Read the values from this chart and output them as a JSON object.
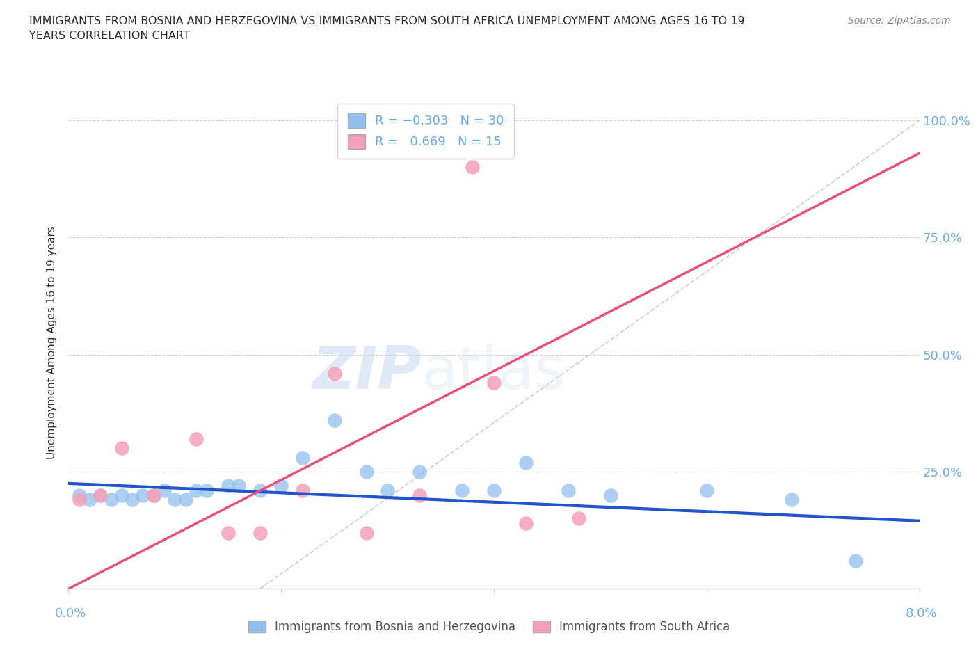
{
  "title": "IMMIGRANTS FROM BOSNIA AND HERZEGOVINA VS IMMIGRANTS FROM SOUTH AFRICA UNEMPLOYMENT AMONG AGES 16 TO 19\nYEARS CORRELATION CHART",
  "source": "Source: ZipAtlas.com",
  "ylabel": "Unemployment Among Ages 16 to 19 years",
  "xlim": [
    0.0,
    0.08
  ],
  "ylim": [
    0.0,
    1.05
  ],
  "bosnia_R": -0.303,
  "bosnia_N": 30,
  "sa_R": 0.669,
  "sa_N": 15,
  "bosnia_color": "#92C0EE",
  "sa_color": "#F4A0B8",
  "bosnia_line_color": "#2255CC",
  "sa_line_color": "#E8507A",
  "ref_line_color": "#c8c8c8",
  "tick_color": "#6aaae0",
  "legend_bosnia_label": "Immigrants from Bosnia and Herzegovina",
  "legend_sa_label": "Immigrants from South Africa",
  "bosnia_x": [
    0.001,
    0.002,
    0.003,
    0.004,
    0.005,
    0.006,
    0.007,
    0.008,
    0.009,
    0.01,
    0.011,
    0.012,
    0.013,
    0.015,
    0.016,
    0.018,
    0.02,
    0.022,
    0.025,
    0.028,
    0.03,
    0.033,
    0.037,
    0.04,
    0.043,
    0.047,
    0.051,
    0.06,
    0.068,
    0.074
  ],
  "bosnia_y": [
    0.2,
    0.19,
    0.2,
    0.19,
    0.2,
    0.19,
    0.2,
    0.2,
    0.21,
    0.19,
    0.19,
    0.21,
    0.21,
    0.22,
    0.22,
    0.21,
    0.22,
    0.28,
    0.36,
    0.25,
    0.21,
    0.25,
    0.21,
    0.21,
    0.27,
    0.21,
    0.2,
    0.21,
    0.19,
    0.06
  ],
  "sa_x": [
    0.001,
    0.003,
    0.005,
    0.008,
    0.012,
    0.015,
    0.018,
    0.022,
    0.025,
    0.028,
    0.033,
    0.038,
    0.04,
    0.043,
    0.048
  ],
  "sa_y": [
    0.19,
    0.2,
    0.3,
    0.2,
    0.32,
    0.12,
    0.12,
    0.21,
    0.46,
    0.12,
    0.2,
    0.9,
    0.44,
    0.14,
    0.15
  ],
  "bosnia_line_x": [
    0.0,
    0.08
  ],
  "bosnia_line_y": [
    0.225,
    0.145
  ],
  "sa_line_x": [
    0.0,
    0.08
  ],
  "sa_line_y": [
    0.0,
    0.93
  ],
  "ref_line_x": [
    0.018,
    0.08
  ],
  "ref_line_y": [
    0.0,
    1.0
  ],
  "watermark_zip": "ZIP",
  "watermark_atlas": "atlas",
  "background_color": "#ffffff"
}
